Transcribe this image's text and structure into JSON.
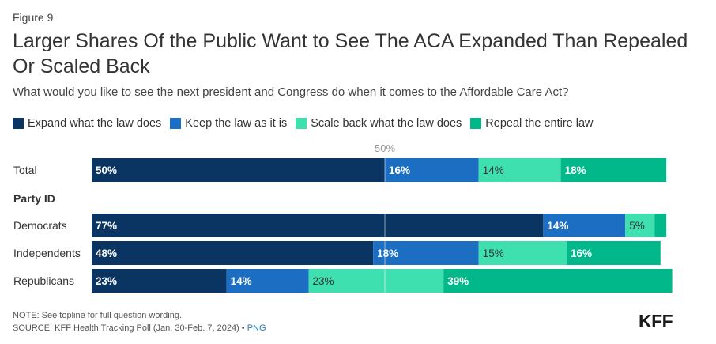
{
  "figure_label": "Figure 9",
  "title": "Larger Shares Of the Public Want to See The ACA Expanded Than Repealed Or Scaled Back",
  "subtitle": "What would you like to see the next president and Congress do when it comes to the Affordable Care Act?",
  "legend": [
    {
      "label": "Expand what the law does",
      "color": "#0a3461"
    },
    {
      "label": "Keep the law as it is",
      "color": "#1b6ec2"
    },
    {
      "label": "Scale back what the law does",
      "color": "#3fe0b0"
    },
    {
      "label": "Repeal the entire law",
      "color": "#00b88a"
    }
  ],
  "chart_data": {
    "type": "bar",
    "orientation": "horizontal",
    "stacked": true,
    "reference_line": {
      "value": 50,
      "label": "50%"
    },
    "categories": [
      "Total",
      "Democrats",
      "Independents",
      "Republicans"
    ],
    "group_label": "Party ID",
    "series": [
      {
        "name": "Expand what the law does",
        "values": [
          50,
          77,
          48,
          23
        ]
      },
      {
        "name": "Keep the law as it is",
        "values": [
          16,
          14,
          18,
          14
        ]
      },
      {
        "name": "Scale back what the law does",
        "values": [
          14,
          5,
          15,
          23
        ]
      },
      {
        "name": "Repeal the entire law",
        "values": [
          18,
          null,
          16,
          39
        ]
      }
    ],
    "data_labels": [
      [
        "50%",
        "16%",
        "14%",
        "18%"
      ],
      [
        "77%",
        "14%",
        "5%",
        ""
      ],
      [
        "48%",
        "18%",
        "15%",
        "16%"
      ],
      [
        "23%",
        "14%",
        "23%",
        "39%"
      ]
    ],
    "segment_widths": [
      [
        50,
        16,
        14,
        18
      ],
      [
        77,
        14,
        5,
        2
      ],
      [
        48,
        18,
        15,
        16
      ],
      [
        23,
        14,
        23,
        39
      ]
    ]
  },
  "footer": {
    "note": "NOTE: See topline for full question wording.",
    "source": "SOURCE: KFF Health Tracking Poll (Jan. 30-Feb. 7, 2024) • ",
    "png_link": "PNG",
    "logo": "KFF"
  }
}
